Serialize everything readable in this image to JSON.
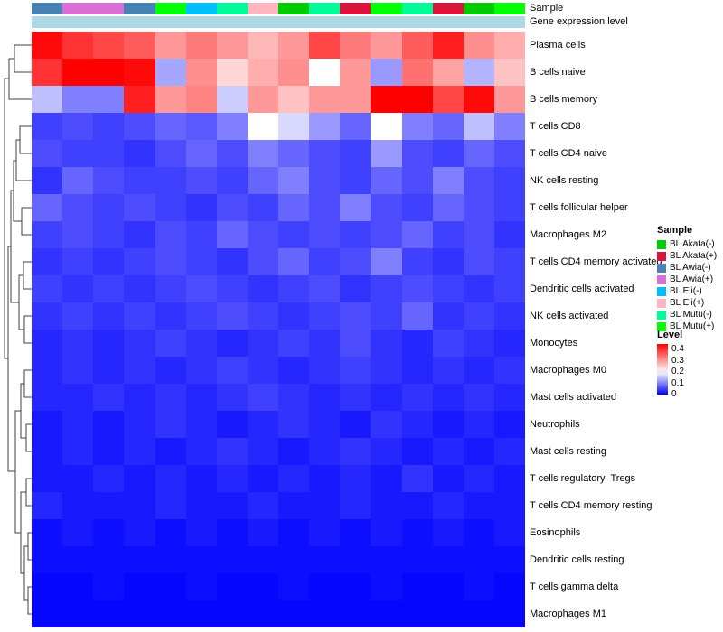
{
  "annotations": {
    "rows": [
      {
        "label": "Sample"
      },
      {
        "label": "Gene expression level"
      }
    ],
    "sample_colors_by_column": [
      "#4682B4",
      "#DA70D6",
      "#DA70D6",
      "#4682B4",
      "#00FF00",
      "#00BFFF",
      "#00FA9A",
      "#FFB6C1",
      "#00CD00",
      "#00FA9A",
      "#DC143C",
      "#00FF00",
      "#00FA9A",
      "#DC143C",
      "#00CD00",
      "#00FF00"
    ],
    "gene_expression_color": "#ADD8E6"
  },
  "legend_sample": {
    "title": "Sample",
    "entries": [
      {
        "label": "BL Akata(-)",
        "color": "#00CD00"
      },
      {
        "label": "BL Akata(+)",
        "color": "#DC143C"
      },
      {
        "label": "BL Awia(-)",
        "color": "#4682B4"
      },
      {
        "label": "BL Awia(+)",
        "color": "#DA70D6"
      },
      {
        "label": "BL Eli(-)",
        "color": "#00BFFF"
      },
      {
        "label": "BL Eli(+)",
        "color": "#FFB6C1"
      },
      {
        "label": "BL Mutu(-)",
        "color": "#00FA9A"
      },
      {
        "label": "BL Mutu(+)",
        "color": "#00FF00"
      }
    ]
  },
  "legend_level": {
    "title": "Level",
    "ticks": [
      "0.4",
      "0.3",
      "0.2",
      "0.1",
      "0"
    ]
  },
  "chart_data": {
    "type": "heatmap",
    "rows": [
      "Plasma cells",
      "B cells naive",
      "B cells memory",
      "T cells CD8",
      "T cells CD4 naive",
      "NK cells resting",
      "T cells follicular helper",
      "Macrophages M2",
      "T cells CD4 memory activated",
      "Dendritic cells activated",
      "NK cells activated",
      "Monocytes",
      "Macrophages M0",
      "Mast cells activated",
      "Neutrophils",
      "Mast cells resting",
      "T cells regulatory  Tregs",
      "T cells CD4 memory resting",
      "Eosinophils",
      "Dendritic cells resting",
      "T cells gamma delta",
      "Macrophages M1"
    ],
    "column_samples": [
      "BL Awia(-)",
      "BL Awia(+)",
      "BL Awia(+)",
      "BL Awia(-)",
      "BL Mutu(+)",
      "BL Eli(-)",
      "BL Mutu(-)",
      "BL Eli(+)",
      "BL Akata(-)",
      "BL Mutu(-)",
      "BL Akata(+)",
      "BL Mutu(+)",
      "BL Mutu(-)",
      "BL Akata(+)",
      "BL Akata(-)",
      "BL Mutu(+)"
    ],
    "scale": {
      "min": 0,
      "mid": 0.2,
      "max": 0.45,
      "low": "#0000FF",
      "mid_color": "#FFFFFF",
      "high": "#FF0000"
    },
    "values": [
      [
        0.44,
        0.4,
        0.38,
        0.36,
        0.3,
        0.33,
        0.3,
        0.27,
        0.3,
        0.38,
        0.33,
        0.3,
        0.36,
        0.42,
        0.31,
        0.28
      ],
      [
        0.4,
        0.45,
        0.45,
        0.44,
        0.13,
        0.31,
        0.24,
        0.28,
        0.31,
        0.2,
        0.3,
        0.12,
        0.34,
        0.29,
        0.14,
        0.26
      ],
      [
        0.15,
        0.1,
        0.1,
        0.42,
        0.3,
        0.32,
        0.16,
        0.3,
        0.26,
        0.3,
        0.3,
        0.45,
        0.45,
        0.38,
        0.44,
        0.3
      ],
      [
        0.05,
        0.06,
        0.05,
        0.06,
        0.08,
        0.07,
        0.1,
        0.2,
        0.17,
        0.12,
        0.08,
        0.2,
        0.1,
        0.08,
        0.15,
        0.1
      ],
      [
        0.06,
        0.05,
        0.05,
        0.04,
        0.06,
        0.08,
        0.06,
        0.1,
        0.08,
        0.06,
        0.05,
        0.12,
        0.06,
        0.05,
        0.08,
        0.06
      ],
      [
        0.04,
        0.08,
        0.06,
        0.05,
        0.05,
        0.06,
        0.05,
        0.08,
        0.1,
        0.06,
        0.05,
        0.08,
        0.06,
        0.1,
        0.06,
        0.05
      ],
      [
        0.08,
        0.06,
        0.05,
        0.06,
        0.05,
        0.04,
        0.06,
        0.05,
        0.08,
        0.06,
        0.1,
        0.06,
        0.05,
        0.08,
        0.06,
        0.05
      ],
      [
        0.05,
        0.06,
        0.05,
        0.04,
        0.06,
        0.05,
        0.08,
        0.06,
        0.05,
        0.06,
        0.05,
        0.06,
        0.08,
        0.05,
        0.06,
        0.04
      ],
      [
        0.04,
        0.05,
        0.04,
        0.05,
        0.06,
        0.05,
        0.04,
        0.06,
        0.08,
        0.05,
        0.06,
        0.1,
        0.05,
        0.04,
        0.06,
        0.05
      ],
      [
        0.05,
        0.04,
        0.05,
        0.04,
        0.05,
        0.06,
        0.05,
        0.04,
        0.05,
        0.06,
        0.04,
        0.05,
        0.06,
        0.05,
        0.04,
        0.05
      ],
      [
        0.04,
        0.05,
        0.04,
        0.05,
        0.04,
        0.05,
        0.06,
        0.05,
        0.04,
        0.05,
        0.06,
        0.05,
        0.08,
        0.04,
        0.05,
        0.04
      ],
      [
        0.03,
        0.04,
        0.03,
        0.04,
        0.05,
        0.04,
        0.03,
        0.04,
        0.05,
        0.04,
        0.06,
        0.04,
        0.03,
        0.05,
        0.04,
        0.03
      ],
      [
        0.03,
        0.04,
        0.03,
        0.04,
        0.03,
        0.04,
        0.05,
        0.04,
        0.03,
        0.04,
        0.05,
        0.04,
        0.03,
        0.04,
        0.03,
        0.04
      ],
      [
        0.03,
        0.03,
        0.04,
        0.03,
        0.04,
        0.03,
        0.04,
        0.05,
        0.04,
        0.03,
        0.04,
        0.03,
        0.04,
        0.03,
        0.04,
        0.03
      ],
      [
        0.02,
        0.03,
        0.02,
        0.03,
        0.04,
        0.03,
        0.02,
        0.03,
        0.04,
        0.03,
        0.02,
        0.04,
        0.03,
        0.02,
        0.03,
        0.02
      ],
      [
        0.02,
        0.03,
        0.02,
        0.03,
        0.02,
        0.03,
        0.04,
        0.03,
        0.02,
        0.03,
        0.04,
        0.03,
        0.02,
        0.03,
        0.02,
        0.03
      ],
      [
        0.02,
        0.02,
        0.03,
        0.02,
        0.03,
        0.02,
        0.03,
        0.02,
        0.03,
        0.02,
        0.03,
        0.02,
        0.04,
        0.02,
        0.03,
        0.02
      ],
      [
        0.03,
        0.02,
        0.02,
        0.02,
        0.03,
        0.02,
        0.02,
        0.03,
        0.02,
        0.02,
        0.03,
        0.02,
        0.02,
        0.03,
        0.02,
        0.02
      ],
      [
        0.01,
        0.02,
        0.01,
        0.02,
        0.01,
        0.02,
        0.01,
        0.02,
        0.01,
        0.02,
        0.01,
        0.02,
        0.01,
        0.02,
        0.01,
        0.02
      ],
      [
        0.01,
        0.01,
        0.01,
        0.01,
        0.01,
        0.01,
        0.01,
        0.01,
        0.01,
        0.01,
        0.01,
        0.01,
        0.01,
        0.01,
        0.01,
        0.01
      ],
      [
        0.005,
        0.005,
        0.01,
        0.005,
        0.005,
        0.01,
        0.005,
        0.005,
        0.01,
        0.005,
        0.005,
        0.01,
        0.005,
        0.005,
        0.01,
        0.005
      ],
      [
        0.005,
        0.005,
        0.005,
        0.005,
        0.005,
        0.005,
        0.005,
        0.005,
        0.005,
        0.005,
        0.005,
        0.005,
        0.005,
        0.005,
        0.005,
        0.005
      ]
    ]
  }
}
